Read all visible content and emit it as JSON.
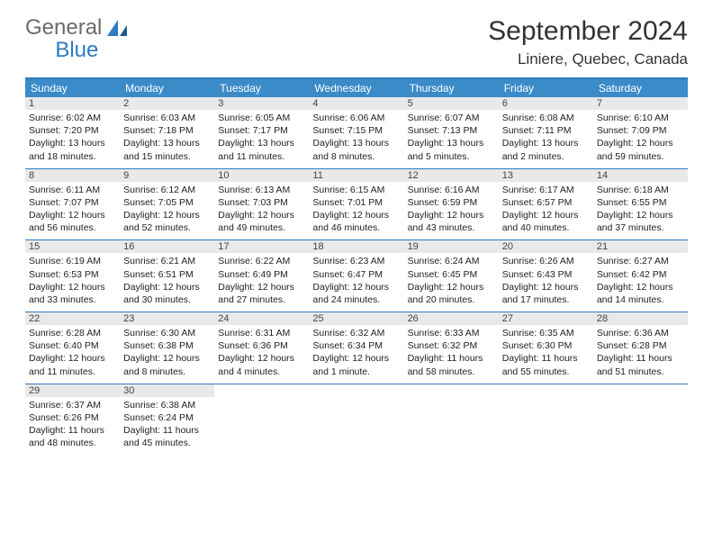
{
  "brand": {
    "part1": "General",
    "part2": "Blue"
  },
  "title": "September 2024",
  "location": "Liniere, Quebec, Canada",
  "colors": {
    "header_bg": "#3b8bc8",
    "accent_border": "#2f7bbf",
    "daynum_bg": "#e9e9e9",
    "text": "#222222",
    "logo_gray": "#6b6b6b",
    "logo_blue": "#2f7bbf",
    "background": "#ffffff"
  },
  "day_names": [
    "Sunday",
    "Monday",
    "Tuesday",
    "Wednesday",
    "Thursday",
    "Friday",
    "Saturday"
  ],
  "weeks": [
    [
      {
        "n": "1",
        "sunrise": "6:02 AM",
        "sunset": "7:20 PM",
        "daylight": "13 hours and 18 minutes."
      },
      {
        "n": "2",
        "sunrise": "6:03 AM",
        "sunset": "7:18 PM",
        "daylight": "13 hours and 15 minutes."
      },
      {
        "n": "3",
        "sunrise": "6:05 AM",
        "sunset": "7:17 PM",
        "daylight": "13 hours and 11 minutes."
      },
      {
        "n": "4",
        "sunrise": "6:06 AM",
        "sunset": "7:15 PM",
        "daylight": "13 hours and 8 minutes."
      },
      {
        "n": "5",
        "sunrise": "6:07 AM",
        "sunset": "7:13 PM",
        "daylight": "13 hours and 5 minutes."
      },
      {
        "n": "6",
        "sunrise": "6:08 AM",
        "sunset": "7:11 PM",
        "daylight": "13 hours and 2 minutes."
      },
      {
        "n": "7",
        "sunrise": "6:10 AM",
        "sunset": "7:09 PM",
        "daylight": "12 hours and 59 minutes."
      }
    ],
    [
      {
        "n": "8",
        "sunrise": "6:11 AM",
        "sunset": "7:07 PM",
        "daylight": "12 hours and 56 minutes."
      },
      {
        "n": "9",
        "sunrise": "6:12 AM",
        "sunset": "7:05 PM",
        "daylight": "12 hours and 52 minutes."
      },
      {
        "n": "10",
        "sunrise": "6:13 AM",
        "sunset": "7:03 PM",
        "daylight": "12 hours and 49 minutes."
      },
      {
        "n": "11",
        "sunrise": "6:15 AM",
        "sunset": "7:01 PM",
        "daylight": "12 hours and 46 minutes."
      },
      {
        "n": "12",
        "sunrise": "6:16 AM",
        "sunset": "6:59 PM",
        "daylight": "12 hours and 43 minutes."
      },
      {
        "n": "13",
        "sunrise": "6:17 AM",
        "sunset": "6:57 PM",
        "daylight": "12 hours and 40 minutes."
      },
      {
        "n": "14",
        "sunrise": "6:18 AM",
        "sunset": "6:55 PM",
        "daylight": "12 hours and 37 minutes."
      }
    ],
    [
      {
        "n": "15",
        "sunrise": "6:19 AM",
        "sunset": "6:53 PM",
        "daylight": "12 hours and 33 minutes."
      },
      {
        "n": "16",
        "sunrise": "6:21 AM",
        "sunset": "6:51 PM",
        "daylight": "12 hours and 30 minutes."
      },
      {
        "n": "17",
        "sunrise": "6:22 AM",
        "sunset": "6:49 PM",
        "daylight": "12 hours and 27 minutes."
      },
      {
        "n": "18",
        "sunrise": "6:23 AM",
        "sunset": "6:47 PM",
        "daylight": "12 hours and 24 minutes."
      },
      {
        "n": "19",
        "sunrise": "6:24 AM",
        "sunset": "6:45 PM",
        "daylight": "12 hours and 20 minutes."
      },
      {
        "n": "20",
        "sunrise": "6:26 AM",
        "sunset": "6:43 PM",
        "daylight": "12 hours and 17 minutes."
      },
      {
        "n": "21",
        "sunrise": "6:27 AM",
        "sunset": "6:42 PM",
        "daylight": "12 hours and 14 minutes."
      }
    ],
    [
      {
        "n": "22",
        "sunrise": "6:28 AM",
        "sunset": "6:40 PM",
        "daylight": "12 hours and 11 minutes."
      },
      {
        "n": "23",
        "sunrise": "6:30 AM",
        "sunset": "6:38 PM",
        "daylight": "12 hours and 8 minutes."
      },
      {
        "n": "24",
        "sunrise": "6:31 AM",
        "sunset": "6:36 PM",
        "daylight": "12 hours and 4 minutes."
      },
      {
        "n": "25",
        "sunrise": "6:32 AM",
        "sunset": "6:34 PM",
        "daylight": "12 hours and 1 minute."
      },
      {
        "n": "26",
        "sunrise": "6:33 AM",
        "sunset": "6:32 PM",
        "daylight": "11 hours and 58 minutes."
      },
      {
        "n": "27",
        "sunrise": "6:35 AM",
        "sunset": "6:30 PM",
        "daylight": "11 hours and 55 minutes."
      },
      {
        "n": "28",
        "sunrise": "6:36 AM",
        "sunset": "6:28 PM",
        "daylight": "11 hours and 51 minutes."
      }
    ],
    [
      {
        "n": "29",
        "sunrise": "6:37 AM",
        "sunset": "6:26 PM",
        "daylight": "11 hours and 48 minutes."
      },
      {
        "n": "30",
        "sunrise": "6:38 AM",
        "sunset": "6:24 PM",
        "daylight": "11 hours and 45 minutes."
      },
      null,
      null,
      null,
      null,
      null
    ]
  ],
  "labels": {
    "sunrise": "Sunrise:",
    "sunset": "Sunset:",
    "daylight": "Daylight:"
  }
}
